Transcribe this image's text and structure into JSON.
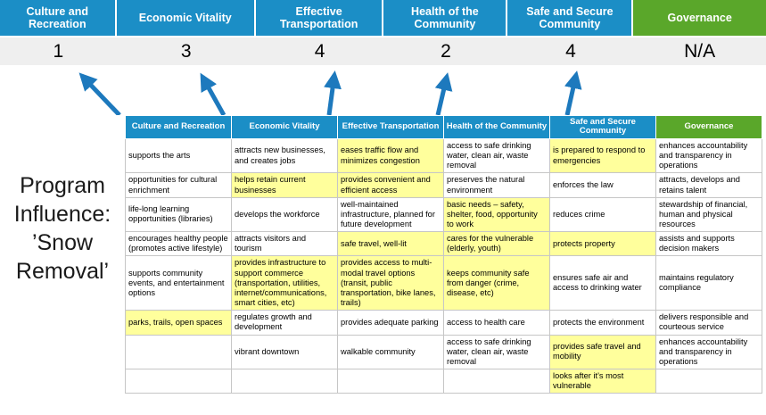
{
  "title": "Program Influence: ’Snow Removal’",
  "colors": {
    "header_blue": "#1b8ec6",
    "header_green": "#5aa72a",
    "highlight_yellow": "#ffff9c",
    "score_band_gray": "#efefef",
    "arrow_blue": "#1d79bd"
  },
  "summary": {
    "columns": [
      {
        "label": "Culture and Recreation",
        "score": "1"
      },
      {
        "label": "Economic Vitality",
        "score": "3"
      },
      {
        "label": "Effective Transportation",
        "score": "4"
      },
      {
        "label": "Health of the Community",
        "score": "2"
      },
      {
        "label": "Safe and Secure Community",
        "score": "4"
      },
      {
        "label": "Governance",
        "score": "N/A",
        "theme": "green"
      }
    ]
  },
  "matrix": {
    "headers": [
      "Culture and Recreation",
      "Economic Vitality",
      "Effective Transportation",
      "Health of the Community",
      "Safe and Secure Community",
      "Governance"
    ],
    "rows": [
      [
        {
          "t": "supports the arts"
        },
        {
          "t": "attracts new businesses, and creates jobs"
        },
        {
          "t": "eases traffic flow and minimizes congestion",
          "h": true
        },
        {
          "t": "access to safe drinking water, clean air, waste removal"
        },
        {
          "t": "is prepared to respond to emergencies",
          "h": true
        },
        {
          "t": "enhances accountability and transparency in operations"
        }
      ],
      [
        {
          "t": "opportunities for cultural enrichment"
        },
        {
          "t": "helps retain current businesses",
          "h": true
        },
        {
          "t": "provides convenient and efficient access",
          "h": true
        },
        {
          "t": "preserves the natural environment"
        },
        {
          "t": "enforces the law"
        },
        {
          "t": "attracts, develops and retains talent"
        }
      ],
      [
        {
          "t": "life-long learning opportunities (libraries)"
        },
        {
          "t": "develops the workforce"
        },
        {
          "t": "well-maintained infrastructure, planned for future development"
        },
        {
          "t": "basic needs – safety, shelter, food, opportunity to work",
          "h": true
        },
        {
          "t": "reduces crime"
        },
        {
          "t": "stewardship of financial, human and physical resources"
        }
      ],
      [
        {
          "t": "encourages healthy people (promotes active lifestyle)"
        },
        {
          "t": "attracts visitors and tourism"
        },
        {
          "t": "safe travel, well-lit",
          "h": true
        },
        {
          "t": "cares for the vulnerable (elderly, youth)",
          "h": true
        },
        {
          "t": "protects property",
          "h": true
        },
        {
          "t": "assists and supports decision makers"
        }
      ],
      [
        {
          "t": "supports community events, and entertainment options"
        },
        {
          "t": "provides infrastructure to support commerce (transportation, utilities, internet/communications, smart cities, etc)",
          "h": true
        },
        {
          "t": "provides access to multi-modal travel options (transit, public transportation, bike lanes, trails)",
          "h": true
        },
        {
          "t": "keeps community safe from danger (crime, disease, etc)",
          "h": true
        },
        {
          "t": "ensures safe air and access to drinking water"
        },
        {
          "t": "maintains regulatory compliance"
        }
      ],
      [
        {
          "t": "parks, trails, open spaces",
          "h": true
        },
        {
          "t": "regulates growth and development"
        },
        {
          "t": "provides adequate parking"
        },
        {
          "t": "access to health care"
        },
        {
          "t": "protects the environment"
        },
        {
          "t": "delivers responsible and courteous service"
        }
      ],
      [
        {
          "t": ""
        },
        {
          "t": "vibrant downtown"
        },
        {
          "t": "walkable community"
        },
        {
          "t": "access to safe drinking water, clean air, waste removal"
        },
        {
          "t": "provides safe travel and mobility",
          "h": true
        },
        {
          "t": "enhances accountability and transparency in operations"
        }
      ],
      [
        {
          "t": ""
        },
        {
          "t": ""
        },
        {
          "t": ""
        },
        {
          "t": ""
        },
        {
          "t": "looks after it's most vulnerable",
          "h": true
        },
        {
          "t": ""
        }
      ]
    ]
  }
}
